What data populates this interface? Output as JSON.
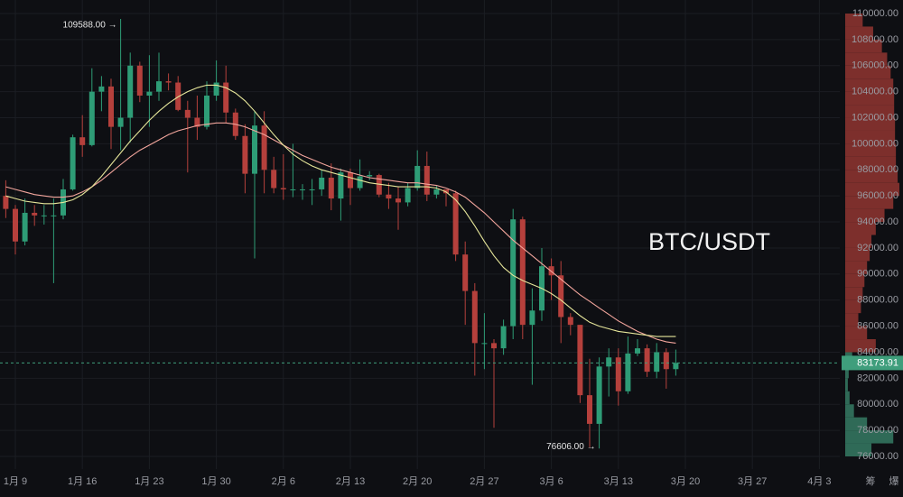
{
  "chart_data": {
    "type": "candlestick",
    "symbol": "BTC/USDT",
    "categories": [
      null,
      "1月 9",
      null,
      null,
      null,
      null,
      null,
      null,
      "1月 16",
      null,
      null,
      null,
      null,
      null,
      null,
      "1月 23",
      null,
      null,
      null,
      null,
      null,
      null,
      "1月 30",
      null,
      null,
      null,
      null,
      null,
      null,
      "2月 6",
      null,
      null,
      null,
      null,
      null,
      null,
      "2月 13",
      null,
      null,
      null,
      null,
      null,
      null,
      "2月 20",
      null,
      null,
      null,
      null,
      null,
      null,
      "2月 27",
      null,
      null,
      null,
      null,
      null,
      null,
      "3月 6",
      null,
      null,
      null,
      null,
      null,
      null,
      "3月 13",
      null,
      null,
      null,
      null,
      null,
      null,
      "3月 20",
      null,
      null,
      null,
      null,
      null,
      null,
      "3月 27",
      null,
      null,
      null,
      null,
      null,
      null,
      "4月 3",
      null
    ],
    "open": [
      96000,
      95000,
      92500,
      94700,
      94500,
      94500,
      94500,
      96500,
      100500,
      99900,
      104000,
      104400,
      101300,
      102000,
      106000,
      103700,
      104000,
      104800,
      104700,
      102600,
      102000,
      101300,
      103700,
      104700,
      102400,
      100600,
      97700,
      101400,
      98000,
      96600,
      96500,
      96500,
      96500,
      96500,
      97400,
      95800,
      97800,
      96600,
      97500,
      97600,
      96100,
      95800,
      95500,
      96600,
      98300,
      96100,
      96500,
      96200,
      91500,
      88700,
      84700,
      84700,
      84300,
      86000,
      94200,
      86100,
      87200,
      90600,
      89900,
      86700,
      86100,
      80700,
      78500,
      82900,
      83600,
      81000,
      83900,
      84300,
      82500,
      84000,
      82700,
      null,
      null,
      null,
      null,
      null,
      null,
      null,
      null,
      null,
      null,
      null,
      null,
      null,
      null,
      null,
      null
    ],
    "high": [
      97200,
      95300,
      95800,
      95300,
      95300,
      95800,
      97300,
      100700,
      102200,
      105800,
      105200,
      105000,
      109588,
      107000,
      106300,
      106800,
      107000,
      105400,
      105200,
      103300,
      103700,
      104800,
      106400,
      106000,
      102700,
      101500,
      102500,
      102500,
      99000,
      99200,
      100000,
      96900,
      97300,
      98000,
      98500,
      98100,
      98100,
      98800,
      97900,
      97700,
      97000,
      96700,
      97000,
      99500,
      99400,
      96800,
      96500,
      96400,
      92500,
      89300,
      87000,
      85000,
      86500,
      95000,
      94400,
      88900,
      92000,
      91200,
      91000,
      87000,
      86100,
      83500,
      83600,
      84300,
      84300,
      85200,
      85000,
      84600,
      84700,
      84300,
      84200,
      null,
      null,
      null,
      null,
      null,
      null,
      null,
      null,
      null,
      null,
      null,
      null,
      null,
      null,
      null,
      null
    ],
    "low": [
      94300,
      91500,
      92200,
      93700,
      93800,
      89300,
      94200,
      96400,
      99000,
      99800,
      102500,
      99600,
      99500,
      100100,
      103200,
      101300,
      103300,
      104100,
      102500,
      97800,
      100300,
      101100,
      103300,
      101600,
      100300,
      96200,
      91200,
      96200,
      96200,
      95700,
      95900,
      95700,
      95300,
      96000,
      94900,
      94100,
      95300,
      96400,
      97200,
      95900,
      95000,
      93400,
      95200,
      96400,
      95600,
      95800,
      95200,
      91000,
      86100,
      82200,
      82700,
      78200,
      83800,
      85000,
      85000,
      81500,
      86400,
      88000,
      84700,
      85300,
      80100,
      76700,
      76606,
      80600,
      79900,
      80800,
      83700,
      82100,
      82000,
      81200,
      82200,
      null,
      null,
      null,
      null,
      null,
      null,
      null,
      null,
      null,
      null,
      null,
      null,
      null,
      null,
      null,
      null
    ],
    "close": [
      95000,
      92500,
      94700,
      94500,
      94500,
      94500,
      96500,
      100500,
      99900,
      104000,
      104400,
      101300,
      102000,
      106000,
      103700,
      104000,
      104800,
      104700,
      102600,
      102000,
      101300,
      103700,
      104700,
      102400,
      100600,
      97700,
      101400,
      98000,
      96600,
      96500,
      96500,
      96500,
      96500,
      97400,
      95800,
      97800,
      96600,
      97500,
      97600,
      96100,
      95800,
      95500,
      96600,
      98300,
      96100,
      96500,
      96200,
      91500,
      88700,
      84700,
      84700,
      84300,
      86000,
      94200,
      86100,
      87200,
      90600,
      89900,
      86700,
      86100,
      80700,
      78500,
      82900,
      83600,
      81000,
      83900,
      84300,
      82500,
      84000,
      82700,
      83173.91,
      null,
      null,
      null,
      null,
      null,
      null,
      null,
      null,
      null,
      null,
      null,
      null,
      null,
      null,
      null,
      null
    ],
    "up_color": "#2e9c76",
    "down_color": "#b5403c",
    "moving_averages": [
      {
        "color": "#f2a59c",
        "values": [
          96700,
          96500,
          96300,
          96100,
          96000,
          95900,
          95900,
          96000,
          96300,
          96700,
          97200,
          97800,
          98400,
          99000,
          99500,
          99900,
          100300,
          100700,
          101000,
          101200,
          101400,
          101500,
          101600,
          101600,
          101500,
          101300,
          101000,
          100700,
          100300,
          99900,
          99500,
          99100,
          98800,
          98500,
          98200,
          98000,
          97800,
          97600,
          97400,
          97300,
          97200,
          97100,
          97000,
          97000,
          96900,
          96800,
          96600,
          96300,
          95900,
          95300,
          94700,
          94000,
          93300,
          92600,
          92000,
          91400,
          90800,
          90200,
          89600,
          89000,
          88400,
          87900,
          87400,
          86900,
          86400,
          86000,
          85600,
          85300,
          85000,
          84800,
          84700,
          null,
          null,
          null,
          null,
          null,
          null,
          null,
          null,
          null,
          null,
          null,
          null,
          null,
          null,
          null,
          null
        ]
      },
      {
        "color": "#e6e69a",
        "values": [
          96000,
          95800,
          95600,
          95500,
          95400,
          95400,
          95500,
          95700,
          96100,
          96700,
          97500,
          98400,
          99300,
          100200,
          101000,
          101800,
          102500,
          103100,
          103600,
          104000,
          104300,
          104500,
          104500,
          104300,
          103900,
          103300,
          102500,
          101600,
          100700,
          99900,
          99200,
          98700,
          98300,
          98000,
          97800,
          97600,
          97400,
          97200,
          97000,
          96900,
          96800,
          96700,
          96700,
          96700,
          96700,
          96600,
          96300,
          95700,
          94800,
          93700,
          92500,
          91400,
          90500,
          89900,
          89500,
          89200,
          88900,
          88500,
          88000,
          87400,
          86800,
          86300,
          86000,
          85800,
          85600,
          85500,
          85400,
          85300,
          85200,
          85200,
          85200,
          null,
          null,
          null,
          null,
          null,
          null,
          null,
          null,
          null,
          null,
          null,
          null,
          null,
          null,
          null,
          null
        ]
      }
    ],
    "ylim": [
      76000,
      110000
    ],
    "yticks": [
      {
        "value": 76000,
        "label": "76000.00"
      },
      {
        "value": 78000,
        "label": "78000.00"
      },
      {
        "value": 80000,
        "label": "80000.00"
      },
      {
        "value": 82000,
        "label": "82000.00"
      },
      {
        "value": 84000,
        "label": "84000.00"
      },
      {
        "value": 86000,
        "label": "86000.00"
      },
      {
        "value": 88000,
        "label": "88000.00"
      },
      {
        "value": 90000,
        "label": "90000.00"
      },
      {
        "value": 92000,
        "label": "92000.00"
      },
      {
        "value": 94000,
        "label": "94000.00"
      },
      {
        "value": 96000,
        "label": "96000.00"
      },
      {
        "value": 98000,
        "label": "98000.00"
      },
      {
        "value": 100000,
        "label": "100000.00"
      },
      {
        "value": 102000,
        "label": "102000.00"
      },
      {
        "value": 104000,
        "label": "104000.00"
      },
      {
        "value": 106000,
        "label": "106000.00"
      },
      {
        "value": 108000,
        "label": "108000.00"
      },
      {
        "value": 110000,
        "label": "110000.00"
      }
    ],
    "grid": true,
    "last_price": 83173.91,
    "last_price_color": "#3f9e7c",
    "annotations": [
      {
        "text": "109588.00 →",
        "index": 12,
        "field": "high"
      },
      {
        "text": "76606.00 →",
        "index": 62,
        "field": "low"
      }
    ],
    "volume_profile": {
      "bins": [
        76000,
        77000,
        78000,
        79000,
        80000,
        81000,
        82000,
        83000,
        84000,
        85000,
        86000,
        87000,
        88000,
        89000,
        90000,
        91000,
        92000,
        93000,
        94000,
        95000,
        96000,
        97000,
        98000,
        99000,
        100000,
        101000,
        102000,
        103000,
        104000,
        105000,
        106000,
        107000,
        108000,
        109000,
        110000
      ],
      "values": [
        30,
        55,
        25,
        10,
        5,
        3,
        4,
        8,
        35,
        25,
        15,
        18,
        20,
        22,
        25,
        28,
        30,
        35,
        45,
        55,
        62,
        60,
        58,
        58,
        57,
        57,
        56,
        56,
        55,
        52,
        48,
        42,
        32,
        20
      ],
      "colors": [
        "#7d2f2c",
        "#2f6a57"
      ]
    },
    "corner_labels": [
      "筹",
      "爆"
    ]
  }
}
